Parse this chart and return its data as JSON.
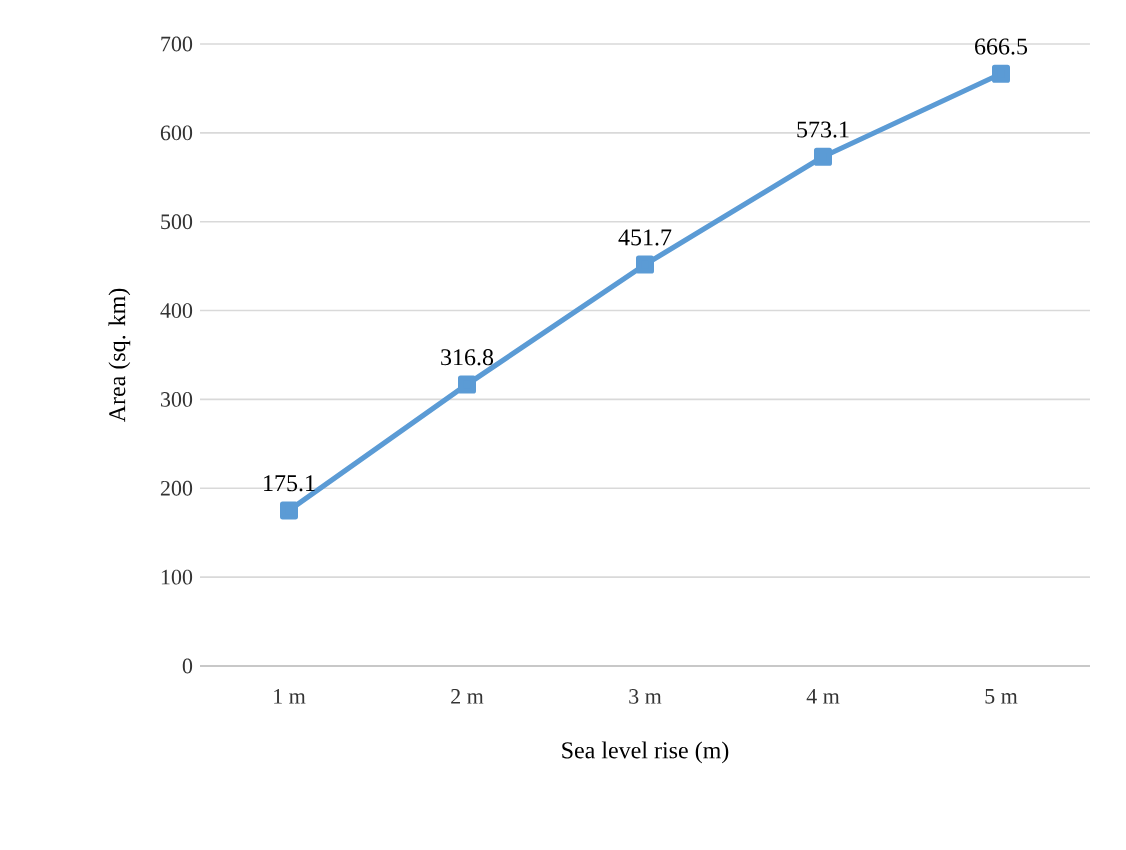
{
  "chart_data": {
    "type": "line",
    "xlabel": "Sea level rise (m)",
    "ylabel": "Area (sq. km)",
    "categories": [
      "1 m",
      "2 m",
      "3 m",
      "4 m",
      "5 m"
    ],
    "series": [
      {
        "color": "#5b9bd5",
        "values": [
          175.1,
          316.8,
          451.7,
          573.1,
          666.5
        ]
      }
    ],
    "ylim": [
      0,
      700
    ],
    "yticks": [
      0,
      100,
      200,
      300,
      400,
      500,
      600,
      700
    ],
    "grid": "y",
    "marker": "square",
    "line_style": "solid",
    "data_labels": true
  }
}
